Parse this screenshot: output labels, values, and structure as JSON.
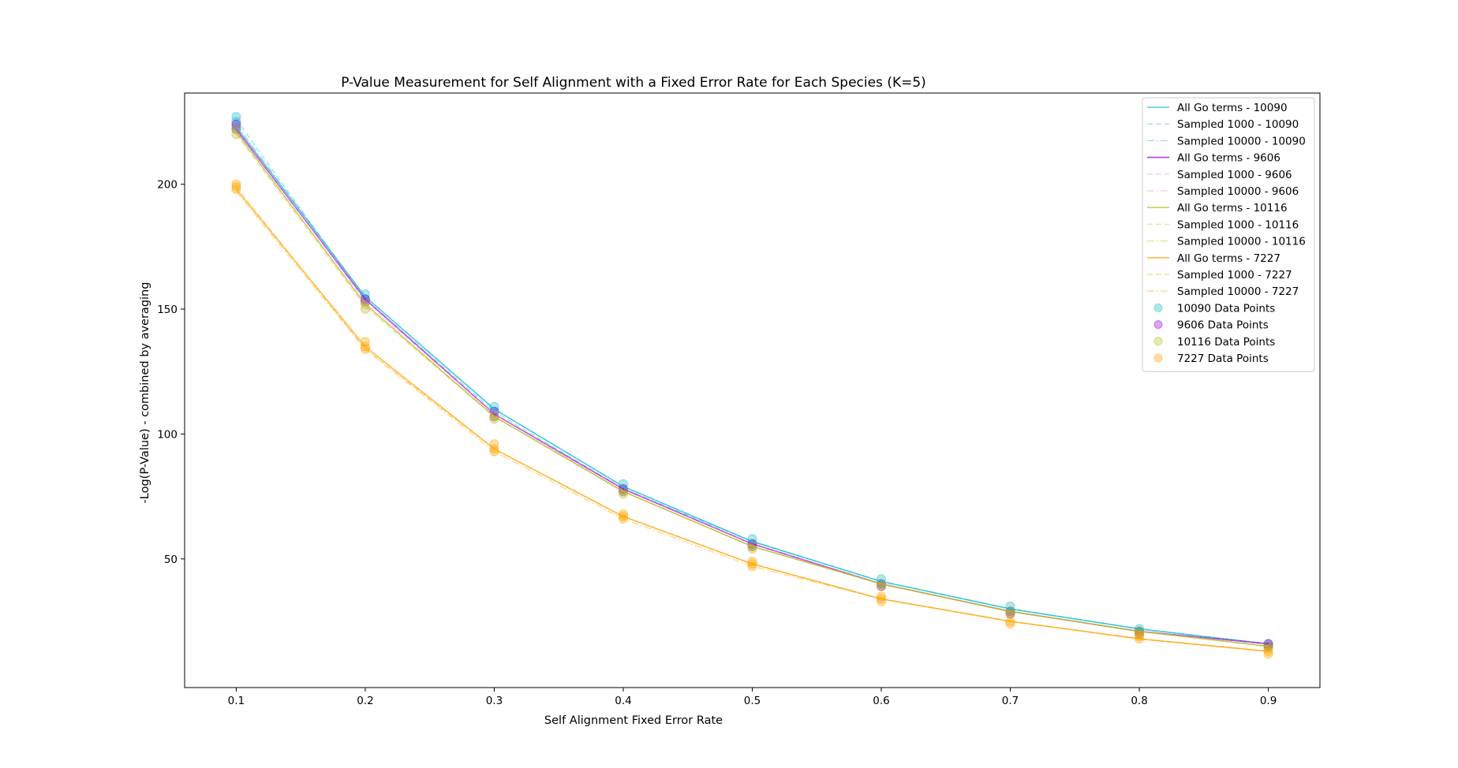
{
  "chart_data": {
    "type": "line",
    "title": "P-Value Measurement for Self Alignment with a Fixed Error Rate for Each Species (K=5)",
    "xlabel": "Self Alignment Fixed Error Rate",
    "ylabel": "-Log(P-Value) - combined by averaging",
    "xlim": [
      0.06,
      0.94
    ],
    "ylim": [
      -1.5,
      236.5
    ],
    "x_ticks": [
      "0.1",
      "0.2",
      "0.3",
      "0.4",
      "0.5",
      "0.6",
      "0.7",
      "0.8",
      "0.9"
    ],
    "y_ticks": [
      "50",
      "100",
      "150",
      "200"
    ],
    "grid": false,
    "legend_position": "top-right",
    "x": [
      0.1,
      0.2,
      0.3,
      0.4,
      0.5,
      0.6,
      0.7,
      0.8,
      0.9
    ],
    "series": [
      {
        "name": "All Go terms - 10090",
        "style": "solid",
        "color": "#17becf",
        "values": [
          223,
          155,
          110,
          79,
          57,
          41,
          30,
          22,
          16
        ]
      },
      {
        "name": "Sampled 1000 - 10090",
        "style": "dashed",
        "color": "#17becf",
        "values": [
          226,
          154,
          109,
          78,
          57,
          41,
          30,
          22,
          16
        ]
      },
      {
        "name": "Sampled 10000 - 10090",
        "style": "dashdot",
        "color": "#17becf",
        "values": [
          224,
          155,
          110,
          79,
          57,
          41,
          30,
          22,
          16
        ]
      },
      {
        "name": "All Go terms - 9606",
        "style": "solid",
        "color": "#9400d3",
        "values": [
          222,
          154,
          108,
          78,
          56,
          40,
          29,
          21,
          16
        ]
      },
      {
        "name": "Sampled 1000 - 9606",
        "style": "dashed",
        "color": "#ee82ee",
        "values": [
          223,
          153,
          108,
          77,
          55,
          40,
          29,
          21,
          15
        ]
      },
      {
        "name": "Sampled 10000 - 9606",
        "style": "dashdot",
        "color": "#ee82ee",
        "values": [
          222,
          154,
          108,
          78,
          56,
          40,
          29,
          21,
          16
        ]
      },
      {
        "name": "All Go terms - 10116",
        "style": "solid",
        "color": "#bcbd22",
        "values": [
          221,
          152,
          107,
          77,
          55,
          40,
          29,
          21,
          15
        ]
      },
      {
        "name": "Sampled 1000 - 10116",
        "style": "dashed",
        "color": "#bcbd22",
        "values": [
          220,
          151,
          107,
          77,
          55,
          40,
          29,
          21,
          15
        ]
      },
      {
        "name": "Sampled 10000 - 10116",
        "style": "dashdot",
        "color": "#bcbd22",
        "values": [
          221,
          152,
          107,
          77,
          55,
          40,
          29,
          21,
          15
        ]
      },
      {
        "name": "All Go terms - 7227",
        "style": "solid",
        "color": "#ffa500",
        "values": [
          198,
          135,
          94,
          67,
          48,
          34,
          25,
          18,
          13
        ]
      },
      {
        "name": "Sampled 1000 - 7227",
        "style": "dashed",
        "color": "#ffa500",
        "values": [
          199,
          134,
          94,
          67,
          48,
          34,
          25,
          18,
          13
        ]
      },
      {
        "name": "Sampled 10000 - 7227",
        "style": "dashdot",
        "color": "#ffa500",
        "values": [
          197,
          134,
          93,
          66,
          47,
          34,
          25,
          18,
          13
        ]
      }
    ],
    "scatter_series": [
      {
        "name": "10090 Data Points",
        "color": "#17becf",
        "points": [
          [
            0.1,
            227
          ],
          [
            0.1,
            225
          ],
          [
            0.1,
            223
          ],
          [
            0.2,
            156
          ],
          [
            0.2,
            154
          ],
          [
            0.3,
            111
          ],
          [
            0.3,
            109
          ],
          [
            0.4,
            80
          ],
          [
            0.4,
            78
          ],
          [
            0.5,
            58
          ],
          [
            0.5,
            56
          ],
          [
            0.6,
            42
          ],
          [
            0.6,
            40
          ],
          [
            0.7,
            31
          ],
          [
            0.7,
            29
          ],
          [
            0.8,
            22
          ],
          [
            0.8,
            21
          ],
          [
            0.9,
            16
          ],
          [
            0.9,
            15
          ]
        ]
      },
      {
        "name": "9606 Data Points",
        "color": "#9400d3",
        "points": [
          [
            0.1,
            224
          ],
          [
            0.1,
            222
          ],
          [
            0.2,
            154
          ],
          [
            0.2,
            153
          ],
          [
            0.3,
            109
          ],
          [
            0.3,
            107
          ],
          [
            0.4,
            78
          ],
          [
            0.4,
            77
          ],
          [
            0.5,
            56
          ],
          [
            0.5,
            55
          ],
          [
            0.6,
            40
          ],
          [
            0.6,
            39
          ],
          [
            0.7,
            29
          ],
          [
            0.7,
            28
          ],
          [
            0.8,
            21
          ],
          [
            0.8,
            20
          ],
          [
            0.9,
            16
          ],
          [
            0.9,
            15
          ]
        ]
      },
      {
        "name": "10116 Data Points",
        "color": "#bcbd22",
        "points": [
          [
            0.1,
            222
          ],
          [
            0.1,
            220
          ],
          [
            0.2,
            152
          ],
          [
            0.2,
            150
          ],
          [
            0.3,
            107
          ],
          [
            0.3,
            106
          ],
          [
            0.4,
            77
          ],
          [
            0.4,
            76
          ],
          [
            0.5,
            55
          ],
          [
            0.5,
            54
          ],
          [
            0.6,
            40
          ],
          [
            0.6,
            39
          ],
          [
            0.7,
            29
          ],
          [
            0.7,
            28
          ],
          [
            0.8,
            21
          ],
          [
            0.8,
            20
          ],
          [
            0.9,
            15
          ],
          [
            0.9,
            14
          ]
        ]
      },
      {
        "name": "7227 Data Points",
        "color": "#ffa500",
        "points": [
          [
            0.1,
            200
          ],
          [
            0.1,
            199
          ],
          [
            0.1,
            198
          ],
          [
            0.2,
            137
          ],
          [
            0.2,
            135
          ],
          [
            0.2,
            134
          ],
          [
            0.3,
            96
          ],
          [
            0.3,
            94
          ],
          [
            0.3,
            93
          ],
          [
            0.4,
            68
          ],
          [
            0.4,
            67
          ],
          [
            0.4,
            66
          ],
          [
            0.5,
            49
          ],
          [
            0.5,
            48
          ],
          [
            0.5,
            47
          ],
          [
            0.6,
            35
          ],
          [
            0.6,
            34
          ],
          [
            0.6,
            33
          ],
          [
            0.7,
            25
          ],
          [
            0.7,
            24
          ],
          [
            0.8,
            19
          ],
          [
            0.8,
            18
          ],
          [
            0.9,
            13
          ],
          [
            0.9,
            12
          ]
        ]
      }
    ]
  }
}
